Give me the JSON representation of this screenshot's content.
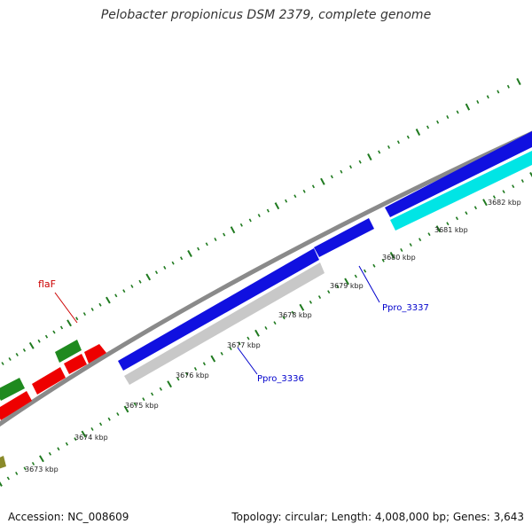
{
  "title": "Pelobacter propionicus DSM 2379, complete genome",
  "footer": {
    "accession": "Accession: NC_008609",
    "topology": "Topology: circular; Length: 4,008,000 bp; Genes: 3,643"
  },
  "ruler": {
    "ticks": [
      {
        "label": "3673 kbp"
      },
      {
        "label": "3674 kbp"
      },
      {
        "label": "3675 kbp"
      },
      {
        "label": "3676 kbp"
      },
      {
        "label": "3677 kbp"
      },
      {
        "label": "3678 kbp"
      },
      {
        "label": "3679 kbp"
      },
      {
        "label": "3680 kbp"
      },
      {
        "label": "3681 kbp"
      },
      {
        "label": "3682 kbp"
      }
    ]
  },
  "gene_labels": [
    {
      "text": "flaF",
      "color": "#cc0000"
    },
    {
      "text": "Ppro_3337",
      "color": "#0000cc"
    },
    {
      "text": "Ppro_3336",
      "color": "#0000cc"
    }
  ],
  "colors": {
    "gene_blue": "#1010e0",
    "gene_cyan": "#00e5e5",
    "gene_gray": "#c8c8c8",
    "gene_red": "#ee0000",
    "gene_green": "#1f8a1f",
    "gene_olive": "#8a8a2a",
    "backbone": "#8a8a8a",
    "tick": "#1f7a1f"
  }
}
